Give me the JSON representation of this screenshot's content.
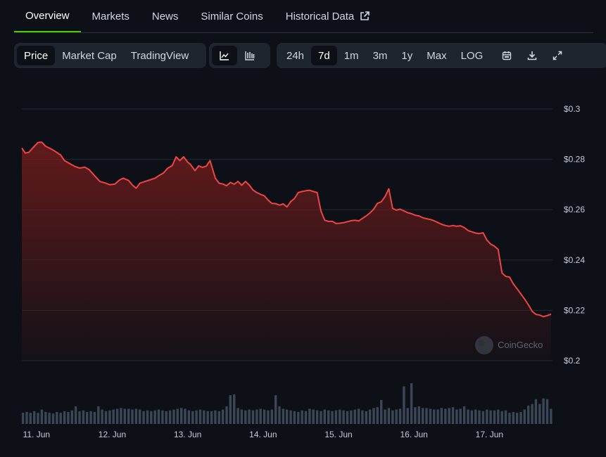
{
  "tabs": [
    {
      "label": "Overview",
      "active": true
    },
    {
      "label": "Markets",
      "active": false
    },
    {
      "label": "News",
      "active": false
    },
    {
      "label": "Similar Coins",
      "active": false
    },
    {
      "label": "Historical Data",
      "active": false,
      "external": true
    }
  ],
  "toolbar": {
    "chart_modes": [
      {
        "label": "Price",
        "active": true
      },
      {
        "label": "Market Cap",
        "active": false
      },
      {
        "label": "TradingView",
        "active": false
      }
    ],
    "chart_styles": [
      {
        "icon": "line-chart-icon",
        "active": true
      },
      {
        "icon": "candlestick-chart-icon",
        "active": false
      }
    ],
    "ranges": [
      {
        "label": "24h",
        "active": false
      },
      {
        "label": "7d",
        "active": true
      },
      {
        "label": "1m",
        "active": false
      },
      {
        "label": "3m",
        "active": false
      },
      {
        "label": "1y",
        "active": false
      },
      {
        "label": "Max",
        "active": false
      },
      {
        "label": "LOG",
        "active": false
      }
    ],
    "actions": [
      "calendar-icon",
      "download-icon",
      "fullscreen-icon"
    ]
  },
  "watermark": "CoinGecko",
  "colors": {
    "line": "#ef4444",
    "fill_top": "#7f1d1d",
    "volume": "#3b4656",
    "accent": "#4bcc00",
    "grid": "#232a33"
  },
  "chart_data": {
    "type": "area",
    "title": "",
    "xlabel": "",
    "ylabel": "",
    "ylim": [
      0.2,
      0.3
    ],
    "y_ticks": [
      "$0.3",
      "$0.28",
      "$0.26",
      "$0.24",
      "$0.22",
      "$0.2"
    ],
    "x_ticks": [
      "11. Jun",
      "12. Jun",
      "13. Jun",
      "14. Jun",
      "15. Jun",
      "16. Jun",
      "17. Jun"
    ],
    "x_range": [
      10.985,
      18.02
    ],
    "grid": true,
    "legend": "none",
    "price": {
      "x": [
        10.985,
        11.03,
        11.08,
        11.13,
        11.2,
        11.25,
        11.3,
        11.35,
        11.42,
        11.5,
        11.55,
        11.62,
        11.68,
        11.75,
        11.82,
        11.88,
        11.95,
        12.02,
        12.1,
        12.15,
        12.22,
        12.28,
        12.33,
        12.4,
        12.45,
        12.5,
        12.55,
        12.62,
        12.68,
        12.75,
        12.8,
        12.86,
        12.92,
        12.98,
        13.03,
        13.08,
        13.13,
        13.18,
        13.22,
        13.28,
        13.33,
        13.38,
        13.43,
        13.48,
        13.55,
        13.6,
        13.65,
        13.7,
        13.75,
        13.8,
        13.85,
        13.9,
        13.95,
        14.0,
        14.05,
        14.1,
        14.15,
        14.2,
        14.25,
        14.3,
        14.35,
        14.4,
        14.45,
        14.5,
        14.55,
        14.6,
        14.65,
        14.7,
        14.75,
        14.8,
        14.85,
        14.9,
        14.95,
        15.0,
        15.05,
        15.1,
        15.15,
        15.2,
        15.25,
        15.3,
        15.35,
        15.4,
        15.45,
        15.5,
        15.55,
        15.6,
        15.65,
        15.7,
        15.75,
        15.8,
        15.85,
        15.9,
        15.95,
        16.0,
        16.05,
        16.1,
        16.15,
        16.2,
        16.25,
        16.3,
        16.35,
        16.4,
        16.45,
        16.5,
        16.55,
        16.6,
        16.65,
        16.7,
        16.75,
        16.8,
        16.85,
        16.9,
        16.95,
        17.0,
        17.05,
        17.1,
        17.15,
        17.2,
        17.25,
        17.3,
        17.35,
        17.4,
        17.45,
        17.5,
        17.55,
        17.6,
        17.65,
        17.7,
        17.75,
        17.8,
        17.85,
        17.9,
        17.95,
        18.0
      ],
      "y": [
        0.2845,
        0.2825,
        0.2828,
        0.2845,
        0.2867,
        0.2868,
        0.2852,
        0.2845,
        0.2833,
        0.2817,
        0.2795,
        0.2783,
        0.2773,
        0.2765,
        0.2769,
        0.2758,
        0.2735,
        0.2712,
        0.2705,
        0.2699,
        0.2702,
        0.2718,
        0.2725,
        0.2716,
        0.2698,
        0.2685,
        0.2705,
        0.2712,
        0.2718,
        0.2725,
        0.2735,
        0.2745,
        0.2765,
        0.2775,
        0.281,
        0.2795,
        0.281,
        0.279,
        0.278,
        0.2755,
        0.2774,
        0.2768,
        0.2773,
        0.2795,
        0.2725,
        0.2705,
        0.2702,
        0.2695,
        0.2708,
        0.2701,
        0.2712,
        0.2697,
        0.2712,
        0.2698,
        0.2678,
        0.2668,
        0.2661,
        0.2655,
        0.2638,
        0.2625,
        0.2624,
        0.2618,
        0.2623,
        0.2611,
        0.2632,
        0.2644,
        0.2668,
        0.2672,
        0.2675,
        0.2677,
        0.2672,
        0.2668,
        0.2595,
        0.2558,
        0.2553,
        0.2554,
        0.2545,
        0.2546,
        0.2548,
        0.2552,
        0.2556,
        0.2558,
        0.2555,
        0.2565,
        0.2575,
        0.2587,
        0.2602,
        0.2625,
        0.2631,
        0.2652,
        0.2683,
        0.2605,
        0.2598,
        0.2602,
        0.2595,
        0.2588,
        0.2584,
        0.2578,
        0.2575,
        0.2568,
        0.2564,
        0.2561,
        0.2556,
        0.2549,
        0.2542,
        0.2537,
        0.2534,
        0.2537,
        0.2534,
        0.2536,
        0.2529,
        0.2517,
        0.2512,
        0.2507,
        0.2505,
        0.2508,
        0.2479,
        0.2463,
        0.2455,
        0.2442,
        0.2349,
        0.2335,
        0.2332,
        0.2305,
        0.2286,
        0.2265,
        0.2245,
        0.2222,
        0.2196,
        0.2184,
        0.2181,
        0.2175,
        0.2179,
        0.2185
      ]
    },
    "volume": {
      "x": [
        11.0,
        11.05,
        11.1,
        11.15,
        11.2,
        11.25,
        11.3,
        11.35,
        11.4,
        11.45,
        11.5,
        11.55,
        11.6,
        11.65,
        11.7,
        11.75,
        11.8,
        11.85,
        11.9,
        11.95,
        12.0,
        12.05,
        12.1,
        12.15,
        12.2,
        12.25,
        12.3,
        12.35,
        12.4,
        12.45,
        12.5,
        12.55,
        12.6,
        12.65,
        12.7,
        12.75,
        12.8,
        12.85,
        12.9,
        12.95,
        13.0,
        13.05,
        13.1,
        13.15,
        13.2,
        13.25,
        13.3,
        13.35,
        13.4,
        13.45,
        13.5,
        13.55,
        13.6,
        13.65,
        13.7,
        13.75,
        13.8,
        13.85,
        13.9,
        13.95,
        14.0,
        14.05,
        14.1,
        14.15,
        14.2,
        14.25,
        14.3,
        14.35,
        14.4,
        14.45,
        14.5,
        14.55,
        14.6,
        14.65,
        14.7,
        14.75,
        14.8,
        14.85,
        14.9,
        14.95,
        15.0,
        15.05,
        15.1,
        15.15,
        15.2,
        15.25,
        15.3,
        15.35,
        15.4,
        15.45,
        15.5,
        15.55,
        15.6,
        15.65,
        15.7,
        15.75,
        15.8,
        15.85,
        15.9,
        15.95,
        16.0,
        16.05,
        16.1,
        16.15,
        16.2,
        16.25,
        16.3,
        16.35,
        16.4,
        16.45,
        16.5,
        16.55,
        16.6,
        16.65,
        16.7,
        16.75,
        16.8,
        16.85,
        16.9,
        16.95,
        17.0,
        17.05,
        17.1,
        17.15,
        17.2,
        17.25,
        17.3,
        17.35,
        17.4,
        17.45,
        17.5,
        17.55,
        17.6,
        17.65,
        17.7,
        17.75,
        17.8,
        17.85,
        17.9,
        17.95,
        18.0
      ],
      "v": [
        14,
        15,
        14,
        16,
        14,
        18,
        15,
        14,
        13,
        15,
        14,
        16,
        15,
        17,
        22,
        16,
        17,
        15,
        16,
        15,
        22,
        18,
        16,
        17,
        18,
        19,
        20,
        19,
        19,
        18,
        19,
        18,
        16,
        17,
        16,
        17,
        18,
        17,
        16,
        17,
        18,
        19,
        20,
        19,
        17,
        16,
        17,
        18,
        17,
        16,
        16,
        17,
        16,
        18,
        22,
        36,
        37,
        20,
        18,
        17,
        18,
        17,
        18,
        19,
        18,
        17,
        18,
        36,
        22,
        19,
        18,
        17,
        16,
        15,
        17,
        16,
        19,
        18,
        17,
        16,
        18,
        17,
        16,
        17,
        18,
        17,
        16,
        17,
        18,
        19,
        17,
        16,
        18,
        20,
        21,
        30,
        18,
        20,
        17,
        18,
        19,
        47,
        20,
        51,
        21,
        22,
        20,
        20,
        19,
        18,
        18,
        20,
        19,
        20,
        21,
        18,
        19,
        22,
        18,
        17,
        18,
        17,
        16,
        18,
        17,
        17,
        18,
        16,
        17,
        14,
        15,
        14,
        15,
        18,
        23,
        25,
        31,
        25,
        32,
        31,
        19
      ]
    }
  }
}
